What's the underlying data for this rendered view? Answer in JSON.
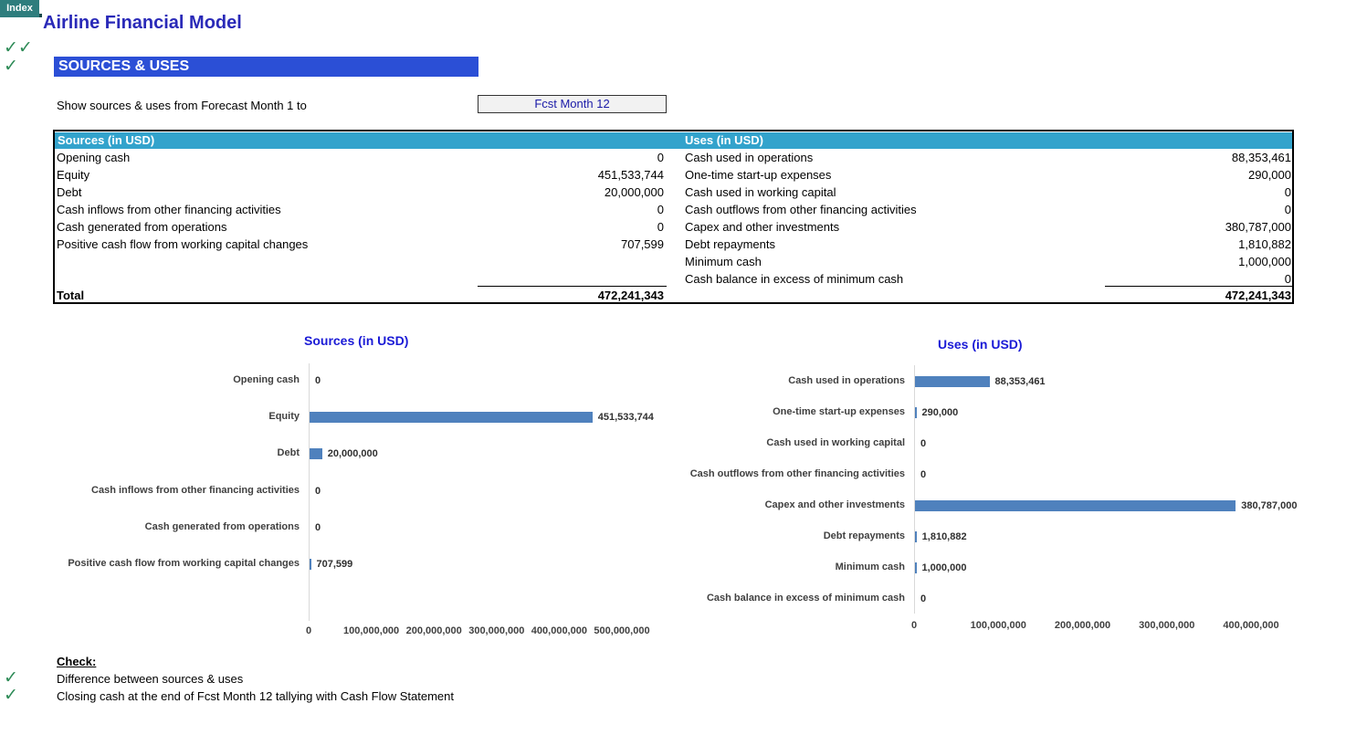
{
  "index_button": "Index",
  "title": "Airline Financial Model",
  "checks_top": [
    "✓✓",
    "✓"
  ],
  "section": "SOURCES & USES",
  "period": {
    "label": "Show sources & uses from Forecast Month 1 to",
    "selected": "Fcst Month 12"
  },
  "table": {
    "sources_header": "Sources (in USD)",
    "uses_header": "Uses (in USD)",
    "sources": [
      {
        "label": "Opening cash",
        "value": "0"
      },
      {
        "label": "Equity",
        "value": "451,533,744"
      },
      {
        "label": "Debt",
        "value": "20,000,000"
      },
      {
        "label": "Cash inflows from other financing activities",
        "value": "0"
      },
      {
        "label": "Cash generated from operations",
        "value": "0"
      },
      {
        "label": "Positive cash flow from working capital changes",
        "value": "707,599"
      }
    ],
    "uses": [
      {
        "label": "Cash used in operations",
        "value": "88,353,461"
      },
      {
        "label": "One-time start-up expenses",
        "value": "290,000"
      },
      {
        "label": "Cash used in working capital",
        "value": "0"
      },
      {
        "label": "Cash outflows from other  financing activities",
        "value": "0"
      },
      {
        "label": "Capex and other investments",
        "value": "380,787,000"
      },
      {
        "label": "Debt repayments",
        "value": "1,810,882"
      },
      {
        "label": "Minimum cash",
        "value": "1,000,000"
      },
      {
        "label": "Cash balance in excess of minimum cash",
        "value": "0"
      }
    ],
    "total_label": "Total",
    "sources_total": "472,241,343",
    "uses_total": "472,241,343"
  },
  "chart_data": [
    {
      "type": "bar",
      "orientation": "horizontal",
      "title": "Sources (in USD)",
      "categories": [
        "Opening cash",
        "Equity",
        "Debt",
        "Cash inflows from other financing activities",
        "Cash generated from operations",
        "Positive cash flow from working capital changes"
      ],
      "values": [
        0,
        451533744,
        20000000,
        0,
        0,
        707599
      ],
      "data_labels": [
        "0",
        "451,533,744",
        "20,000,000",
        "0",
        "0",
        "707,599"
      ],
      "xlim": [
        0,
        500000000
      ],
      "ticks": [
        "0",
        "100,000,000",
        "200,000,000",
        "300,000,000",
        "400,000,000",
        "500,000,000"
      ],
      "color": "#4f81bd"
    },
    {
      "type": "bar",
      "orientation": "horizontal",
      "title": "Uses (in USD)",
      "categories": [
        "Cash used in operations",
        "One-time start-up expenses",
        "Cash used in working capital",
        "Cash outflows from other  financing activities",
        "Capex and other investments",
        "Debt repayments",
        "Minimum cash",
        "Cash balance in excess of minimum cash"
      ],
      "values": [
        88353461,
        290000,
        0,
        0,
        380787000,
        1810882,
        1000000,
        0
      ],
      "data_labels": [
        "88,353,461",
        "290,000",
        "0",
        "0",
        "380,787,000",
        "1,810,882",
        "1,000,000",
        "0"
      ],
      "xlim": [
        0,
        400000000
      ],
      "ticks": [
        "0",
        "100,000,000",
        "200,000,000",
        "300,000,000",
        "400,000,000"
      ],
      "color": "#4f81bd"
    }
  ],
  "check": {
    "heading": "Check:",
    "items": [
      {
        "mark": "✓",
        "label": "Difference between sources & uses"
      },
      {
        "mark": "✓",
        "label": "Closing cash at the end of Fcst Month 12 tallying with Cash Flow Statement"
      }
    ]
  }
}
